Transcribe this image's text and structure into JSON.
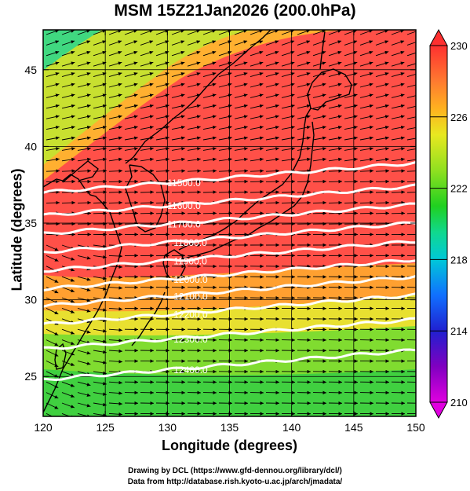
{
  "title": "MSM 15Z21Jan2026 (200.0hPa)",
  "x_axis": {
    "label": "Longitude (degrees)",
    "range": [
      120,
      150
    ],
    "ticks": [
      120,
      125,
      130,
      135,
      140,
      145,
      150
    ]
  },
  "y_axis": {
    "label": "Latitude  (degrees)",
    "range": [
      22.4,
      47.6
    ],
    "ticks": [
      25,
      30,
      35,
      40,
      45
    ]
  },
  "colorbar": {
    "range": [
      210,
      230
    ],
    "tick_labels": [
      "230",
      "226",
      "222",
      "218",
      "214",
      "210"
    ],
    "stops": [
      {
        "value": 210,
        "color": "#e000e0"
      },
      {
        "value": 212,
        "color": "#8000c0"
      },
      {
        "value": 214,
        "color": "#2020d0"
      },
      {
        "value": 216,
        "color": "#1070ff"
      },
      {
        "value": 218,
        "color": "#00c8d8"
      },
      {
        "value": 219.5,
        "color": "#10d890"
      },
      {
        "value": 221,
        "color": "#20d020"
      },
      {
        "value": 223,
        "color": "#90e020"
      },
      {
        "value": 225,
        "color": "#e8e820"
      },
      {
        "value": 226.5,
        "color": "#ffb020"
      },
      {
        "value": 228,
        "color": "#ff7a30"
      },
      {
        "value": 230,
        "color": "#ff3030"
      }
    ]
  },
  "contours": [
    {
      "label": "11500.0",
      "lat": 37.0
    },
    {
      "label": "11600.0",
      "lat": 35.5
    },
    {
      "label": "11700.0",
      "lat": 34.3
    },
    {
      "label": "11800.0",
      "lat": 33.1
    },
    {
      "label": "11900.0",
      "lat": 31.9
    },
    {
      "label": "12000.0",
      "lat": 30.7
    },
    {
      "label": "12100.0",
      "lat": 29.6
    },
    {
      "label": "12200.0",
      "lat": 28.4
    },
    {
      "label": "12300.0",
      "lat": 26.8
    },
    {
      "label": "12400.0",
      "lat": 24.8
    }
  ],
  "credits": {
    "line1": "Drawing by DCL (https://www.gfd-dennou.org/library/dcl/)",
    "line2": "Data from http://database.rish.kyoto-u.ac.jp/arch/jmadata/"
  }
}
